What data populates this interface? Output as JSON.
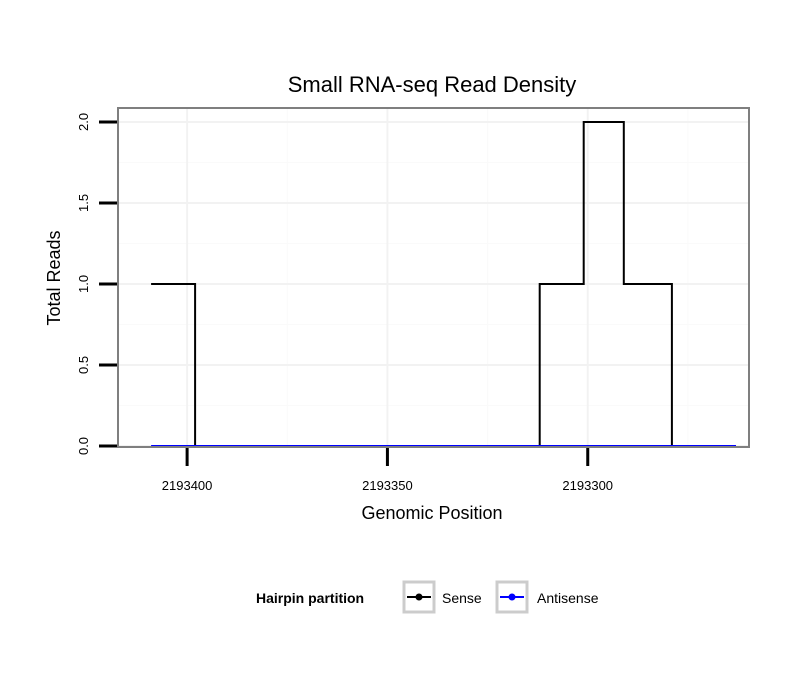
{
  "chart_data": {
    "type": "line",
    "title": "Small RNA-seq Read Density",
    "xlabel": "Genomic Position",
    "ylabel": "Total Reads",
    "x_reversed": true,
    "xlim": [
      2193417,
      2193260
    ],
    "ylim": [
      0,
      2.08
    ],
    "x_ticks": [
      2193400,
      2193350,
      2193300
    ],
    "x_tick_labels": [
      "2193400",
      "2193350",
      "2193300"
    ],
    "y_ticks": [
      0,
      0.5,
      1,
      1.5,
      2
    ],
    "y_tick_labels": [
      "0.0",
      "0.5",
      "1.0",
      "1.5",
      "2.0"
    ],
    "grid": true,
    "legend": {
      "title": "Hairpin partition",
      "position": "bottom",
      "entries": [
        {
          "name": "Sense",
          "color": "#000000"
        },
        {
          "name": "Antisense",
          "color": "#0000ff"
        }
      ]
    },
    "series": [
      {
        "name": "Sense",
        "color": "#000000",
        "x": [
          2193409,
          2193398,
          2193398,
          2193312,
          2193312,
          2193301,
          2193301,
          2193291,
          2193291,
          2193279,
          2193279,
          2193263
        ],
        "y": [
          1,
          1,
          0,
          0,
          1,
          1,
          2,
          2,
          1,
          1,
          0,
          0
        ]
      },
      {
        "name": "Antisense",
        "color": "#0000ff",
        "x": [
          2193409,
          2193263
        ],
        "y": [
          0,
          0
        ]
      }
    ]
  }
}
